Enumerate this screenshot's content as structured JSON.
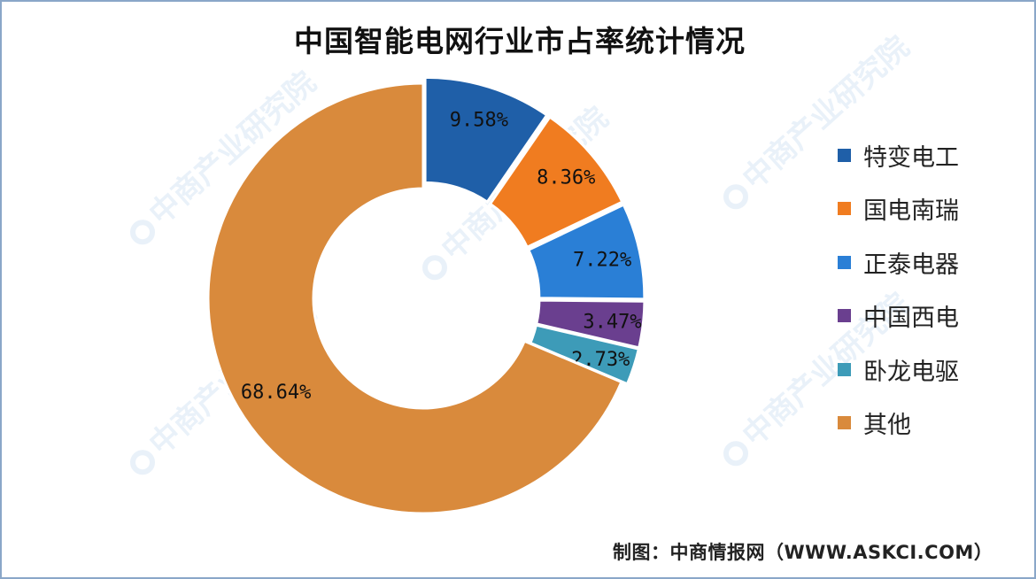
{
  "chart_data": {
    "type": "pie",
    "title": "中国智能电网行业市占率统计情况",
    "hole": "donut",
    "categories": [
      "特变电工",
      "国电南瑞",
      "正泰电器",
      "中国西电",
      "卧龙电驱",
      "其他"
    ],
    "values": [
      9.58,
      8.36,
      7.22,
      3.47,
      2.73,
      68.64
    ],
    "labels": [
      "9.58%",
      "8.36%",
      "7.22%",
      "3.47%",
      "2.73%",
      "68.64%"
    ],
    "colors": [
      "#1f5fa8",
      "#f07c20",
      "#2a7fd6",
      "#6a3f8f",
      "#3d9bb8",
      "#d98a3c"
    ],
    "legend_position": "right"
  },
  "watermark_text": "中商产业研究院",
  "source": "制图：中商情报网（WWW.ASKCI.COM）"
}
